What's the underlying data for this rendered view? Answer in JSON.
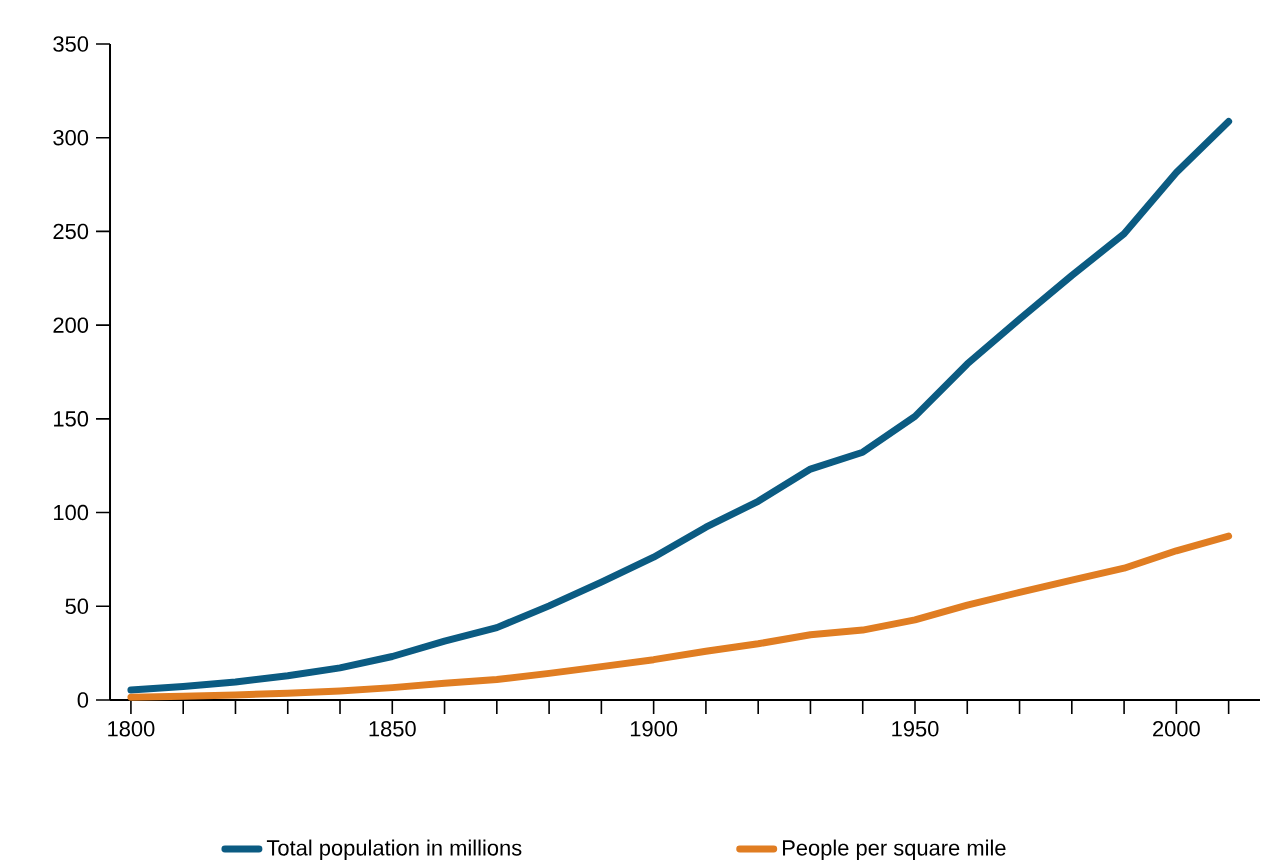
{
  "chart_data": {
    "type": "line",
    "x": [
      1800,
      1810,
      1820,
      1830,
      1840,
      1850,
      1860,
      1870,
      1880,
      1890,
      1900,
      1910,
      1920,
      1930,
      1940,
      1950,
      1960,
      1970,
      1980,
      1990,
      2000,
      2010
    ],
    "series": [
      {
        "name": "Total population in millions",
        "color": "#0b5b82",
        "values": [
          5.3,
          7.2,
          9.6,
          12.9,
          17.1,
          23.2,
          31.4,
          38.6,
          50.2,
          62.9,
          76.2,
          92.2,
          106,
          123.2,
          132.2,
          151.3,
          179.3,
          203.2,
          226.5,
          248.7,
          281.4,
          308.7
        ]
      },
      {
        "name": "People per square mile",
        "color": "#e07d22",
        "values": [
          1.5,
          2,
          2.7,
          3.6,
          4.8,
          6.6,
          8.9,
          10.9,
          14.2,
          17.8,
          21.5,
          26,
          30,
          34.8,
          37.3,
          42.7,
          50.6,
          57.4,
          64,
          70.3,
          79.6,
          87.4
        ]
      }
    ],
    "xlim": [
      1796,
      2016
    ],
    "xticks": [
      1800,
      {
        "value": 1810,
        "label": null
      },
      {
        "value": 1820,
        "label": null
      },
      {
        "value": 1830,
        "label": null
      },
      {
        "value": 1840,
        "label": null
      },
      1850,
      {
        "value": 1860,
        "label": null
      },
      {
        "value": 1870,
        "label": null
      },
      {
        "value": 1880,
        "label": null
      },
      {
        "value": 1890,
        "label": null
      },
      1900,
      {
        "value": 1910,
        "label": null
      },
      {
        "value": 1920,
        "label": null
      },
      {
        "value": 1930,
        "label": null
      },
      {
        "value": 1940,
        "label": null
      },
      1950,
      {
        "value": 1960,
        "label": null
      },
      {
        "value": 1970,
        "label": null
      },
      {
        "value": 1980,
        "label": null
      },
      {
        "value": 1990,
        "label": null
      },
      2000,
      {
        "value": 2010,
        "label": null
      }
    ],
    "ylim": [
      0,
      350
    ],
    "yticks": [
      0,
      50,
      100,
      150,
      200,
      250,
      300,
      350
    ],
    "grid": false,
    "legend": "bottom",
    "marker": "none",
    "line_style": "solid"
  }
}
